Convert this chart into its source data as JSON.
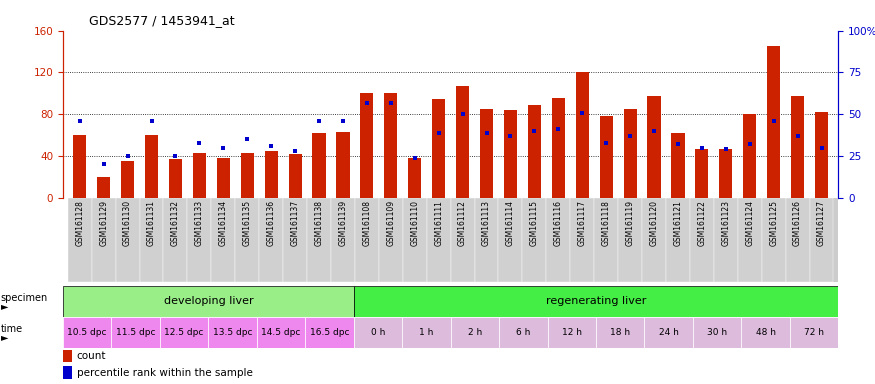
{
  "title": "GDS2577 / 1453941_at",
  "samples": [
    "GSM161128",
    "GSM161129",
    "GSM161130",
    "GSM161131",
    "GSM161132",
    "GSM161133",
    "GSM161134",
    "GSM161135",
    "GSM161136",
    "GSM161137",
    "GSM161138",
    "GSM161139",
    "GSM161108",
    "GSM161109",
    "GSM161110",
    "GSM161111",
    "GSM161112",
    "GSM161113",
    "GSM161114",
    "GSM161115",
    "GSM161116",
    "GSM161117",
    "GSM161118",
    "GSM161119",
    "GSM161120",
    "GSM161121",
    "GSM161122",
    "GSM161123",
    "GSM161124",
    "GSM161125",
    "GSM161126",
    "GSM161127"
  ],
  "count_values": [
    60,
    20,
    35,
    60,
    37,
    43,
    38,
    43,
    45,
    42,
    62,
    63,
    100,
    100,
    38,
    95,
    107,
    85,
    84,
    89,
    96,
    120,
    78,
    85,
    97,
    62,
    47,
    47,
    80,
    145,
    97,
    82
  ],
  "percentile_values": [
    46,
    20,
    25,
    46,
    25,
    33,
    30,
    35,
    31,
    28,
    46,
    46,
    57,
    57,
    24,
    39,
    50,
    39,
    37,
    40,
    41,
    51,
    33,
    37,
    40,
    32,
    30,
    29,
    32,
    46,
    37,
    30
  ],
  "ylim_left": [
    0,
    160
  ],
  "ylim_right": [
    0,
    100
  ],
  "yticks_left": [
    0,
    40,
    80,
    120,
    160
  ],
  "yticks_right": [
    0,
    25,
    50,
    75,
    100
  ],
  "ytick_labels_right": [
    "0",
    "25",
    "50",
    "75",
    "100%"
  ],
  "bar_color": "#cc2200",
  "dot_color": "#0000cc",
  "specimen_groups": [
    {
      "label": "developing liver",
      "start": 0,
      "end": 12,
      "color": "#99ee88"
    },
    {
      "label": "regenerating liver",
      "start": 12,
      "end": 32,
      "color": "#44ee44"
    }
  ],
  "time_labels": [
    {
      "label": "10.5 dpc",
      "start": 0,
      "end": 2
    },
    {
      "label": "11.5 dpc",
      "start": 2,
      "end": 4
    },
    {
      "label": "12.5 dpc",
      "start": 4,
      "end": 6
    },
    {
      "label": "13.5 dpc",
      "start": 6,
      "end": 8
    },
    {
      "label": "14.5 dpc",
      "start": 8,
      "end": 10
    },
    {
      "label": "16.5 dpc",
      "start": 10,
      "end": 12
    },
    {
      "label": "0 h",
      "start": 12,
      "end": 14
    },
    {
      "label": "1 h",
      "start": 14,
      "end": 16
    },
    {
      "label": "2 h",
      "start": 16,
      "end": 18
    },
    {
      "label": "6 h",
      "start": 18,
      "end": 20
    },
    {
      "label": "12 h",
      "start": 20,
      "end": 22
    },
    {
      "label": "18 h",
      "start": 22,
      "end": 24
    },
    {
      "label": "24 h",
      "start": 24,
      "end": 26
    },
    {
      "label": "30 h",
      "start": 26,
      "end": 28
    },
    {
      "label": "48 h",
      "start": 28,
      "end": 30
    },
    {
      "label": "72 h",
      "start": 30,
      "end": 32
    }
  ],
  "time_bg_color_dpc": "#ee88ee",
  "time_bg_color_h": "#ddbbdd",
  "specimen_label": "specimen",
  "time_label": "time"
}
